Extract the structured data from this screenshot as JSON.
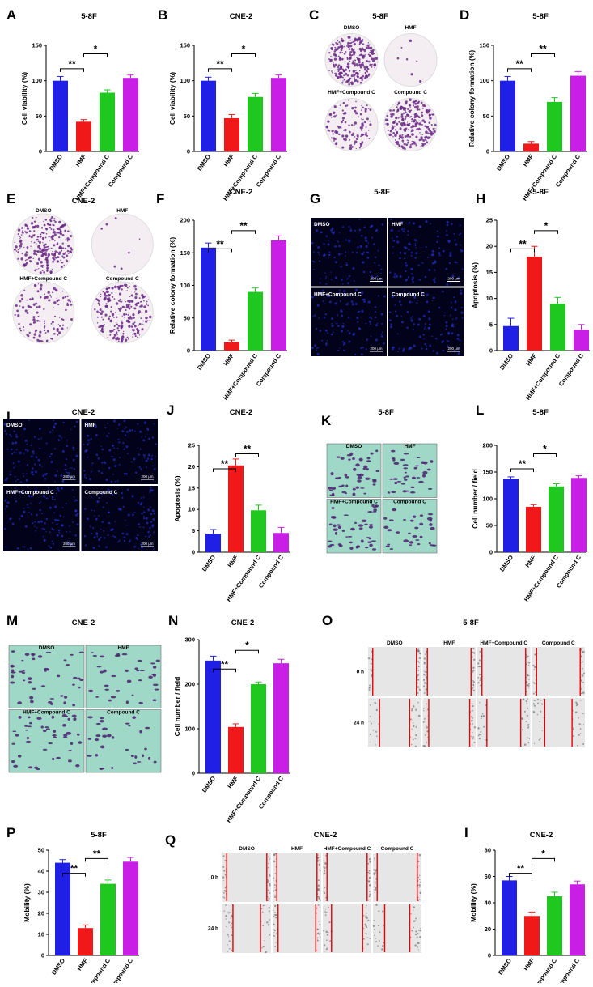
{
  "colors": {
    "DMSO": "#1f1fe6",
    "HMF": "#f01818",
    "HMF+Compound C": "#1ec81e",
    "Compound C": "#c81ee6"
  },
  "image_panels": [
    {
      "letter": "C",
      "title": "5-8F",
      "type": "colony",
      "labels": [
        "DMSO",
        "HMF",
        "HMF+Compound C",
        "Compound C"
      ]
    },
    {
      "letter": "E",
      "title": "CNE-2",
      "type": "colony",
      "labels": [
        "DMSO",
        "HMF",
        "HMF+Compound C",
        "Compound C"
      ]
    },
    {
      "letter": "G",
      "title": "5-8F",
      "type": "fluor",
      "labels": [
        "DMSO",
        "HMF",
        "HMF+Compound C",
        "Compound C"
      ],
      "scalebar": "200 μm"
    },
    {
      "letter": "I",
      "title": "CNE-2",
      "type": "fluor",
      "labels": [
        "DMSO",
        "HMF",
        "HMF+Compound C",
        "Compound C"
      ],
      "scalebar": "200 μm"
    },
    {
      "letter": "K",
      "title": "5-8F",
      "type": "transwell",
      "labels": [
        "DMSO",
        "HMF",
        "HMF+Compound C",
        "Compound C"
      ]
    },
    {
      "letter": "M",
      "title": "CNE-2",
      "type": "transwell",
      "labels": [
        "DMSO",
        "HMF",
        "HMF+Compound C",
        "Compound C"
      ]
    },
    {
      "letter": "O",
      "title": "5-8F",
      "type": "wound",
      "labels": [
        "DMSO",
        "HMF",
        "HMF+Compound C",
        "Compound C"
      ],
      "rows": [
        "0 h",
        "24 h"
      ]
    },
    {
      "letter": "Q",
      "title": "CNE-2",
      "type": "wound",
      "labels": [
        "DMSO",
        "HMF",
        "HMF+Compound C",
        "Compound C"
      ],
      "rows": [
        "0 h",
        "24 h"
      ]
    }
  ],
  "chart_data": [
    {
      "letter": "A",
      "type": "bar",
      "title": "5-8F",
      "ylabel": "Cell viability (%)",
      "categories": [
        "DMSO",
        "HMF",
        "HMF+Compound C",
        "Compound C"
      ],
      "values": [
        100,
        42,
        83,
        104
      ],
      "errors": [
        6,
        3,
        4,
        4
      ],
      "ylim": [
        0,
        150
      ],
      "yticks": [
        0,
        50,
        100,
        150
      ],
      "significance": [
        {
          "pair": [
            0,
            1
          ],
          "label": "**"
        },
        {
          "pair": [
            1,
            2
          ],
          "label": "*"
        }
      ]
    },
    {
      "letter": "B",
      "type": "bar",
      "title": "CNE-2",
      "ylabel": "Cell viability (%)",
      "categories": [
        "DMSO",
        "HMF",
        "HMF+Compound C",
        "Compound C"
      ],
      "values": [
        100,
        47,
        77,
        104
      ],
      "errors": [
        5,
        5,
        5,
        4
      ],
      "ylim": [
        0,
        150
      ],
      "yticks": [
        0,
        50,
        100,
        150
      ],
      "significance": [
        {
          "pair": [
            0,
            1
          ],
          "label": "**"
        },
        {
          "pair": [
            1,
            2
          ],
          "label": "*"
        }
      ]
    },
    {
      "letter": "D",
      "type": "bar",
      "title": "5-8F",
      "ylabel": "Relative colony formation (%)",
      "categories": [
        "DMSO",
        "HMF",
        "HMF+Compound C",
        "Compound C"
      ],
      "values": [
        100,
        11,
        70,
        107
      ],
      "errors": [
        6,
        3,
        6,
        6
      ],
      "ylim": [
        0,
        150
      ],
      "yticks": [
        0,
        50,
        100,
        150
      ],
      "significance": [
        {
          "pair": [
            0,
            1
          ],
          "label": "**"
        },
        {
          "pair": [
            1,
            2
          ],
          "label": "**"
        }
      ]
    },
    {
      "letter": "F",
      "type": "bar",
      "title": "CNE-2",
      "ylabel": "Relative colony formation (%)",
      "categories": [
        "DMSO",
        "HMF",
        "HMF+Compound C",
        "Compound C"
      ],
      "values": [
        158,
        13,
        90,
        169
      ],
      "errors": [
        7,
        3,
        6,
        7
      ],
      "ylim": [
        0,
        200
      ],
      "yticks": [
        0,
        50,
        100,
        150,
        200
      ],
      "significance": [
        {
          "pair": [
            0,
            1
          ],
          "label": "**"
        },
        {
          "pair": [
            1,
            2
          ],
          "label": "**"
        }
      ]
    },
    {
      "letter": "H",
      "type": "bar",
      "title": "5-8F",
      "ylabel": "Apoptosis (%)",
      "categories": [
        "DMSO",
        "HMF",
        "HMF+Compound C",
        "Compound C"
      ],
      "values": [
        4.7,
        18,
        9,
        4
      ],
      "errors": [
        1.5,
        2,
        1.2,
        1
      ],
      "ylim": [
        0,
        25
      ],
      "yticks": [
        0,
        5,
        10,
        15,
        20,
        25
      ],
      "significance": [
        {
          "pair": [
            0,
            1
          ],
          "label": "**"
        },
        {
          "pair": [
            1,
            2
          ],
          "label": "*"
        }
      ]
    },
    {
      "letter": "J",
      "type": "bar",
      "title": "CNE-2",
      "ylabel": "Apoptosis (%)",
      "categories": [
        "DMSO",
        "HMF",
        "HMF+Compound C",
        "Compound C"
      ],
      "values": [
        4.3,
        20.3,
        9.8,
        4.5
      ],
      "errors": [
        1,
        1.5,
        1.2,
        1.3
      ],
      "ylim": [
        0,
        25
      ],
      "yticks": [
        0,
        5,
        10,
        15,
        20,
        25
      ],
      "significance": [
        {
          "pair": [
            0,
            1
          ],
          "label": "**"
        },
        {
          "pair": [
            1,
            2
          ],
          "label": "**"
        }
      ]
    },
    {
      "letter": "L",
      "type": "bar",
      "title": "5-8F",
      "ylabel": "Cell number / field",
      "categories": [
        "DMSO",
        "HMF",
        "HMF+Compound C",
        "Compound C"
      ],
      "values": [
        137,
        85,
        123,
        139
      ],
      "errors": [
        4,
        4,
        5,
        4
      ],
      "ylim": [
        0,
        200
      ],
      "yticks": [
        0,
        50,
        100,
        150,
        200
      ],
      "significance": [
        {
          "pair": [
            0,
            1
          ],
          "label": "**"
        },
        {
          "pair": [
            1,
            2
          ],
          "label": "*"
        }
      ]
    },
    {
      "letter": "N",
      "type": "bar",
      "title": "CNE-2",
      "ylabel": "Cell number / field",
      "categories": [
        "DMSO",
        "HMF",
        "HMF+Compound C",
        "Compound C"
      ],
      "values": [
        253,
        104,
        200,
        247
      ],
      "errors": [
        10,
        7,
        5,
        9
      ],
      "ylim": [
        0,
        300
      ],
      "yticks": [
        0,
        100,
        200,
        300
      ],
      "significance": [
        {
          "pair": [
            0,
            1
          ],
          "label": "**"
        },
        {
          "pair": [
            1,
            2
          ],
          "label": "*"
        }
      ]
    },
    {
      "letter": "P",
      "type": "bar",
      "title": "5-8F",
      "ylabel": "Mobility (%)",
      "categories": [
        "DMSO",
        "HMF",
        "HMF+Compound C",
        "Compound C"
      ],
      "values": [
        44,
        13,
        34,
        44.5
      ],
      "errors": [
        1.5,
        1.5,
        1.8,
        2
      ],
      "ylim": [
        0,
        50
      ],
      "yticks": [
        0,
        10,
        20,
        30,
        40,
        50
      ],
      "significance": [
        {
          "pair": [
            0,
            1
          ],
          "label": "**"
        },
        {
          "pair": [
            1,
            2
          ],
          "label": "**"
        }
      ]
    },
    {
      "letter": "I",
      "type": "bar",
      "title": "CNE-2",
      "ylabel": "Mobility (%)",
      "categories": [
        "DMSO",
        "HMF",
        "HMF+Compound C",
        "Compound C"
      ],
      "values": [
        57,
        30,
        45,
        54
      ],
      "errors": [
        3,
        3,
        3,
        2.5
      ],
      "ylim": [
        0,
        80
      ],
      "yticks": [
        0,
        20,
        40,
        60,
        80
      ],
      "significance": [
        {
          "pair": [
            0,
            1
          ],
          "label": "**"
        },
        {
          "pair": [
            1,
            2
          ],
          "label": "*"
        }
      ]
    }
  ]
}
